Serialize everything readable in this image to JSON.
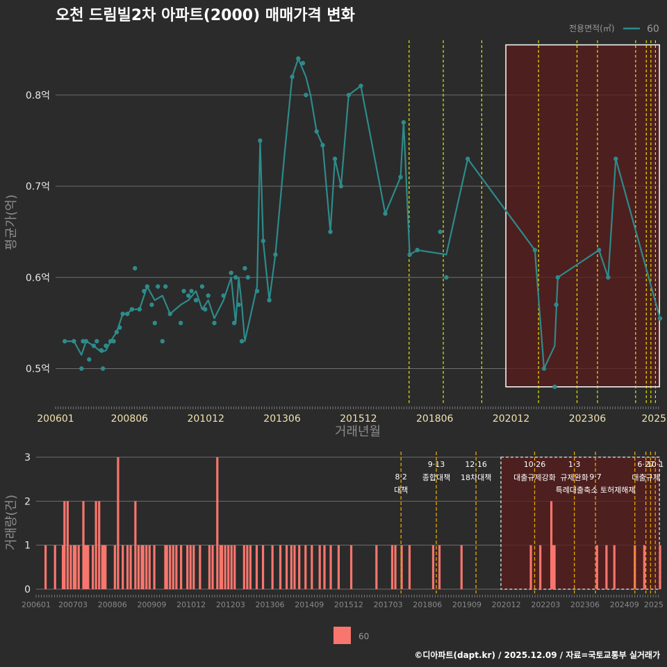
{
  "title": "오천 드림빌2차 아파트(2000) 매매가격 변화",
  "caption": "©디아파트(dapt.kr) / 2025.12.09 / 자료=국토교통부 실거래가",
  "colors": {
    "background": "#2b2b2b",
    "line": "#2e8b8b",
    "bar": "#f8766d",
    "policy_line": "#e6e600",
    "policy_line_bottom": "#e6a800",
    "highlight_fill": "#5a1c1c",
    "grid": "#6e6e6e"
  },
  "legend_top": {
    "title": "전용면적(㎡)",
    "item": "60"
  },
  "legend_bottom": {
    "item": "60"
  },
  "chart_data": [
    {
      "type": "line",
      "title": "오천 드림빌2차 아파트(2000) 매매가격 변화",
      "xlabel": "거래년월",
      "ylabel": "평균가(억)",
      "xlim": [
        2006.0,
        2025.8
      ],
      "ylim": [
        0.46,
        0.86
      ],
      "x_tick_labels": [
        "200601",
        "200806",
        "201012",
        "201306",
        "201512",
        "201806",
        "202012",
        "202306",
        "2025"
      ],
      "x_ticks": [
        2006.0,
        2008.42,
        2010.92,
        2013.42,
        2015.92,
        2018.42,
        2020.92,
        2023.42,
        2025.6
      ],
      "y_ticks": [
        0.5,
        0.6,
        0.7,
        0.8
      ],
      "y_tick_labels": [
        "0.5억",
        "0.6억",
        "0.7억",
        "0.8억"
      ],
      "series": [
        {
          "name": "60",
          "x": [
            2006.3,
            2006.6,
            2006.85,
            2007.0,
            2007.25,
            2007.5,
            2007.65,
            2007.8,
            2008.0,
            2008.2,
            2008.35,
            2008.5,
            2008.75,
            2009.0,
            2009.25,
            2009.5,
            2009.75,
            2010.1,
            2010.35,
            2010.6,
            2010.8,
            2011.0,
            2011.2,
            2011.5,
            2011.75,
            2011.9,
            2012.0,
            2012.1,
            2012.2,
            2012.6,
            2012.7,
            2012.8,
            2013.0,
            2013.2,
            2013.5,
            2013.75,
            2013.95,
            2014.2,
            2014.35,
            2014.55,
            2014.75,
            2015.0,
            2015.15,
            2015.35,
            2015.6,
            2016.0,
            2016.8,
            2017.3,
            2017.4,
            2017.6,
            2017.85,
            2018.8,
            2019.5,
            2021.7,
            2022.0,
            2022.35,
            2022.45,
            2023.8,
            2024.1,
            2024.35,
            2025.8
          ],
          "values": [
            0.53,
            0.53,
            0.515,
            0.53,
            0.525,
            0.518,
            0.52,
            0.53,
            0.54,
            0.56,
            0.56,
            0.565,
            0.565,
            0.59,
            0.575,
            0.58,
            0.56,
            0.57,
            0.575,
            0.585,
            0.565,
            0.575,
            0.555,
            0.575,
            0.6,
            0.55,
            0.6,
            0.57,
            0.53,
            0.59,
            0.75,
            0.64,
            0.575,
            0.625,
            0.735,
            0.82,
            0.84,
            0.82,
            0.8,
            0.76,
            0.745,
            0.65,
            0.73,
            0.7,
            0.8,
            0.81,
            0.67,
            0.71,
            0.77,
            0.625,
            0.63,
            0.625,
            0.73,
            0.63,
            0.5,
            0.525,
            0.6,
            0.63,
            0.6,
            0.73,
            0.555
          ]
        }
      ],
      "points_x": [
        2006.3,
        2006.6,
        2006.85,
        2006.9,
        2007.0,
        2007.1,
        2007.25,
        2007.35,
        2007.5,
        2007.55,
        2007.65,
        2007.8,
        2007.9,
        2008.0,
        2008.1,
        2008.2,
        2008.35,
        2008.5,
        2008.6,
        2008.75,
        2008.9,
        2009.0,
        2009.15,
        2009.25,
        2009.35,
        2009.5,
        2009.6,
        2009.75,
        2010.1,
        2010.2,
        2010.35,
        2010.45,
        2010.6,
        2010.8,
        2010.9,
        2011.0,
        2011.2,
        2011.5,
        2011.75,
        2011.85,
        2011.9,
        2012.0,
        2012.1,
        2012.2,
        2012.3,
        2012.6,
        2012.7,
        2012.8,
        2013.0,
        2013.2,
        2013.75,
        2013.95,
        2014.1,
        2014.2,
        2014.55,
        2014.75,
        2015.0,
        2015.15,
        2015.35,
        2015.6,
        2016.0,
        2016.8,
        2017.3,
        2017.4,
        2017.6,
        2017.85,
        2018.6,
        2018.8,
        2019.5,
        2021.7,
        2022.0,
        2022.35,
        2022.4,
        2022.45,
        2023.8,
        2024.1,
        2024.35,
        2025.8
      ],
      "points_y": [
        0.53,
        0.53,
        0.5,
        0.53,
        0.53,
        0.51,
        0.525,
        0.53,
        0.52,
        0.5,
        0.525,
        0.53,
        0.53,
        0.54,
        0.545,
        0.56,
        0.56,
        0.565,
        0.61,
        0.565,
        0.585,
        0.59,
        0.57,
        0.55,
        0.59,
        0.53,
        0.59,
        0.56,
        0.55,
        0.585,
        0.58,
        0.585,
        0.575,
        0.59,
        0.565,
        0.58,
        0.55,
        0.58,
        0.605,
        0.55,
        0.6,
        0.57,
        0.53,
        0.61,
        0.6,
        0.585,
        0.75,
        0.64,
        0.575,
        0.625,
        0.82,
        0.84,
        0.835,
        0.8,
        0.76,
        0.745,
        0.65,
        0.73,
        0.7,
        0.8,
        0.81,
        0.67,
        0.71,
        0.77,
        0.625,
        0.63,
        0.65,
        0.6,
        0.73,
        0.63,
        0.5,
        0.48,
        0.57,
        0.6,
        0.63,
        0.6,
        0.73,
        0.555
      ],
      "policy_lines_x": [
        2017.58,
        2018.7,
        2019.96,
        2021.82,
        2023.08,
        2023.75,
        2025.0,
        2025.35,
        2025.5,
        2025.65
      ],
      "highlight_range_x": [
        2020.75,
        2025.78
      ]
    },
    {
      "type": "bar",
      "xlabel": "",
      "ylabel": "거래량(건)",
      "ylim": [
        0,
        3
      ],
      "y_ticks": [
        0,
        1,
        2,
        3
      ],
      "x_tick_labels": [
        "200601",
        "200703",
        "200806",
        "200909",
        "201012",
        "201203",
        "201306",
        "201409",
        "201512",
        "201703",
        "201806",
        "201909",
        "202012",
        "202203",
        "202306",
        "202409",
        "2025"
      ],
      "x_ticks": [
        2006.0,
        2007.17,
        2008.42,
        2009.67,
        2010.92,
        2012.17,
        2013.42,
        2014.67,
        2015.92,
        2017.17,
        2018.42,
        2019.67,
        2020.92,
        2022.17,
        2023.42,
        2024.67,
        2025.6
      ],
      "series": [
        {
          "name": "60",
          "x": [
            2006.3,
            2006.6,
            2006.85,
            2006.9,
            2007.0,
            2007.1,
            2007.2,
            2007.25,
            2007.35,
            2007.5,
            2007.55,
            2007.6,
            2007.65,
            2007.8,
            2007.9,
            2008.0,
            2008.1,
            2008.15,
            2008.2,
            2008.5,
            2008.6,
            2008.75,
            2008.9,
            2009.0,
            2009.15,
            2009.25,
            2009.35,
            2009.4,
            2009.5,
            2009.6,
            2009.75,
            2010.1,
            2010.15,
            2010.25,
            2010.35,
            2010.45,
            2010.6,
            2010.8,
            2010.9,
            2011.0,
            2011.2,
            2011.5,
            2011.6,
            2011.75,
            2011.85,
            2011.9,
            2012.0,
            2012.1,
            2012.2,
            2012.3,
            2012.6,
            2012.7,
            2012.8,
            2013.0,
            2013.2,
            2013.5,
            2013.75,
            2013.95,
            2014.1,
            2014.2,
            2014.35,
            2014.55,
            2014.75,
            2015.0,
            2015.15,
            2015.35,
            2015.6,
            2016.0,
            2016.8,
            2017.3,
            2017.4,
            2017.6,
            2017.85,
            2018.6,
            2018.8,
            2019.5,
            2021.7,
            2022.0,
            2022.35,
            2022.4,
            2022.45,
            2023.8,
            2024.1,
            2024.35,
            2025.0,
            2025.3,
            2025.8
          ],
          "values": [
            1,
            1,
            1,
            2,
            2,
            1,
            1,
            1,
            1,
            2,
            1,
            1,
            1,
            1,
            2,
            2,
            1,
            1,
            1,
            1,
            3,
            1,
            1,
            1,
            2,
            1,
            1,
            1,
            1,
            1,
            1,
            1,
            1,
            1,
            1,
            1,
            1,
            1,
            1,
            1,
            1,
            1,
            1,
            3,
            1,
            1,
            1,
            1,
            1,
            1,
            1,
            1,
            1,
            1,
            1,
            1,
            1,
            1,
            1,
            1,
            1,
            1,
            1,
            1,
            1,
            1,
            1,
            1,
            1,
            1,
            1,
            1,
            1,
            1,
            1,
            1,
            1,
            1,
            2,
            1,
            1,
            1,
            1,
            1,
            1,
            1,
            1
          ]
        }
      ],
      "policy_lines_x": [
        2017.58,
        2018.7,
        2019.96,
        2021.82,
        2023.08,
        2023.75,
        2025.0,
        2025.35,
        2025.5,
        2025.65
      ],
      "highlight_range_x": [
        2020.75,
        2025.78
      ],
      "annotations": [
        {
          "x": 2017.58,
          "date": "8·2",
          "label": "대책",
          "row": 2
        },
        {
          "x": 2018.7,
          "date": "9·13",
          "label": "종합대책",
          "row": 1
        },
        {
          "x": 2019.96,
          "date": "12·16",
          "label": "18차대책",
          "row": 1
        },
        {
          "x": 2021.82,
          "date": "10·26",
          "label": "대출규제강화",
          "row": 1
        },
        {
          "x": 2023.08,
          "date": "1·3",
          "label": "규제완화",
          "row": 1
        },
        {
          "x": 2023.75,
          "date": "9·7",
          "label": "특례대출축소 토허제해제",
          "row": 2
        },
        {
          "x": 2025.35,
          "date": "6·27",
          "label": "대출규제",
          "row": 1
        },
        {
          "x": 2025.65,
          "date": "10·1",
          "label": "",
          "row": 1
        }
      ]
    }
  ]
}
